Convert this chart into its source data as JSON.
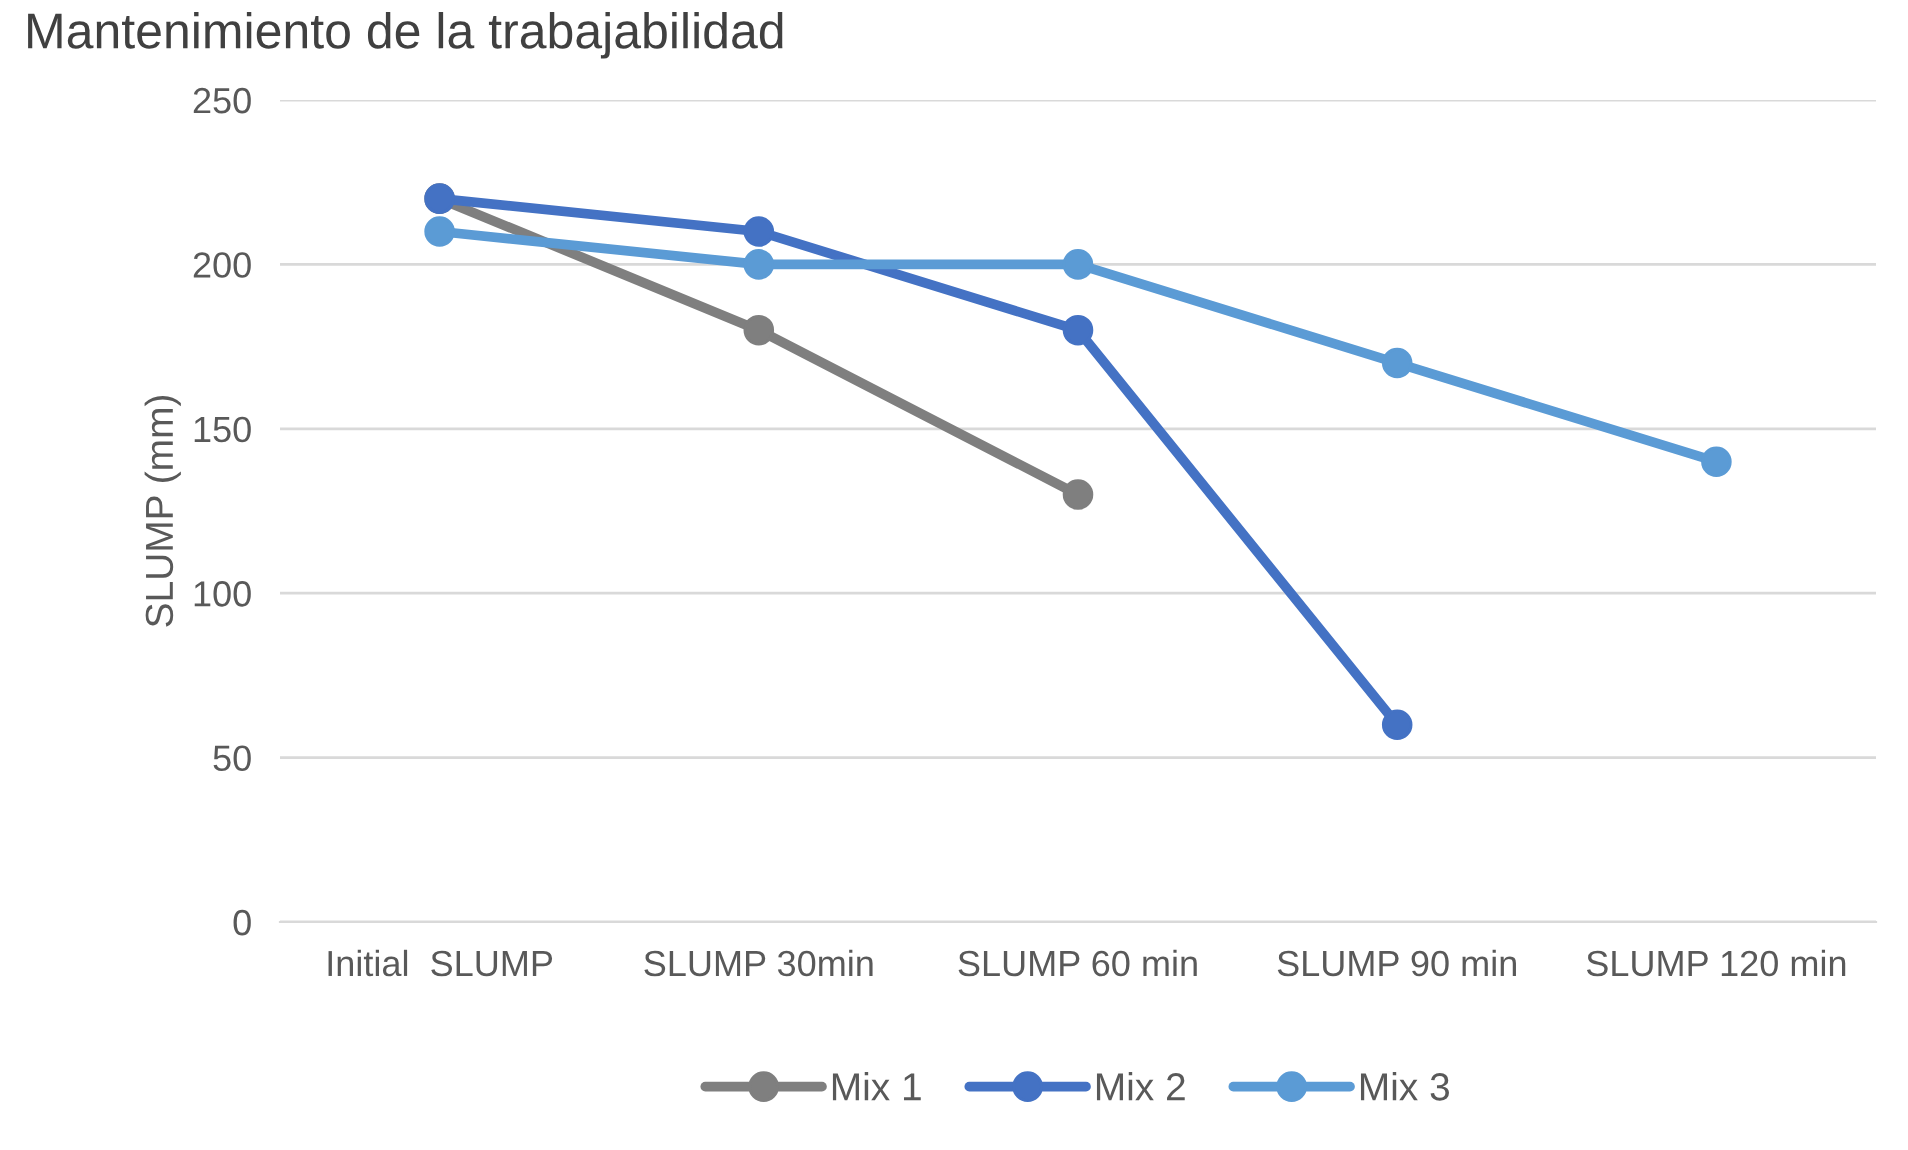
{
  "chart_data": {
    "type": "line",
    "title": "Mantenimiento de la trabajabilidad",
    "ylabel": "SLUMP (mm)",
    "categories": [
      "Initial  SLUMP",
      "SLUMP 30min",
      "SLUMP 60 min",
      "SLUMP 90 min",
      "SLUMP 120 min"
    ],
    "series": [
      {
        "name": "Mix 1",
        "color": "#7f7f7f",
        "values": [
          220,
          180,
          130,
          null,
          null
        ]
      },
      {
        "name": "Mix 2",
        "color": "#4472c4",
        "values": [
          220,
          210,
          180,
          60,
          null
        ]
      },
      {
        "name": "Mix 3",
        "color": "#5b9bd5",
        "values": [
          210,
          200,
          200,
          170,
          140
        ]
      }
    ],
    "ylim": [
      0,
      250
    ],
    "yticks": [
      0,
      50,
      100,
      150,
      200,
      250
    ],
    "grid": "y",
    "legend": "bottom",
    "marker": "circle",
    "line_style": "solid"
  }
}
